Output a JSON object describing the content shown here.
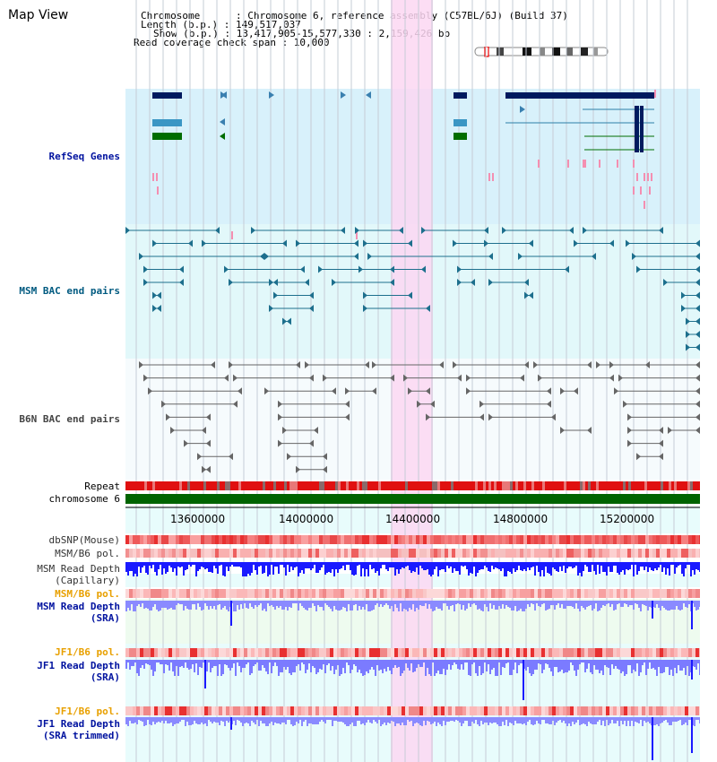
{
  "page": {
    "title": "Map View"
  },
  "header": {
    "lines": [
      "Chromosome      : Chromosome 6, reference assembly (C57BL/6J) (Build 37)",
      "Length (b.p.) : 149,517,037",
      "Show (b.p.) : 13,417,905-15,577,330 : 2,159,426 bp",
      "Read coverage check span : 10,000"
    ]
  },
  "tracks": {
    "refseq": "RefSeq Genes",
    "msm_bac": "MSM BAC end pairs",
    "b6n_bac": "B6N BAC end pairs",
    "repeat": "Repeat",
    "chromosome": "chromosome 6",
    "dbsnp": "dbSNP(Mouse)",
    "msm_b6_pol": "MSM/B6 pol.",
    "msm_read_cap_1": "MSM Read Depth",
    "msm_read_cap_2": "(Capillary)",
    "msm_b6_pol_2": "MSM/B6 pol.",
    "msm_read_sra_1": "MSM Read Depth",
    "msm_read_sra_2": "(SRA)",
    "jf1_b6_pol": "JF1/B6 pol.",
    "jf1_read_sra_1": "JF1 Read Depth",
    "jf1_read_sra_2": "(SRA)",
    "jf1_b6_pol_2": "JF1/B6 pol.",
    "jf1_read_trim_1": "JF1 Read Depth",
    "jf1_read_trim_2": "(SRA trimmed)"
  },
  "axis": {
    "ticks": [
      "13600000",
      "14000000",
      "14400000",
      "14800000",
      "15200000"
    ]
  },
  "colors": {
    "refseq_bg": "#d8f1fb",
    "msm_bg": "#e2f8fa",
    "b6n_bg": "#f6fbfd",
    "highlight": "#fcd7f2",
    "chromosome_green": "#006400",
    "depth_blue": "#1a1aff",
    "depth_light": "#7b7bff",
    "gene_navy": "#001a5e",
    "gene_teal": "#3a96c4",
    "gene_green": "#006d00",
    "bac_line": "#1d6f8d",
    "b6n_line": "#666666"
  }
}
